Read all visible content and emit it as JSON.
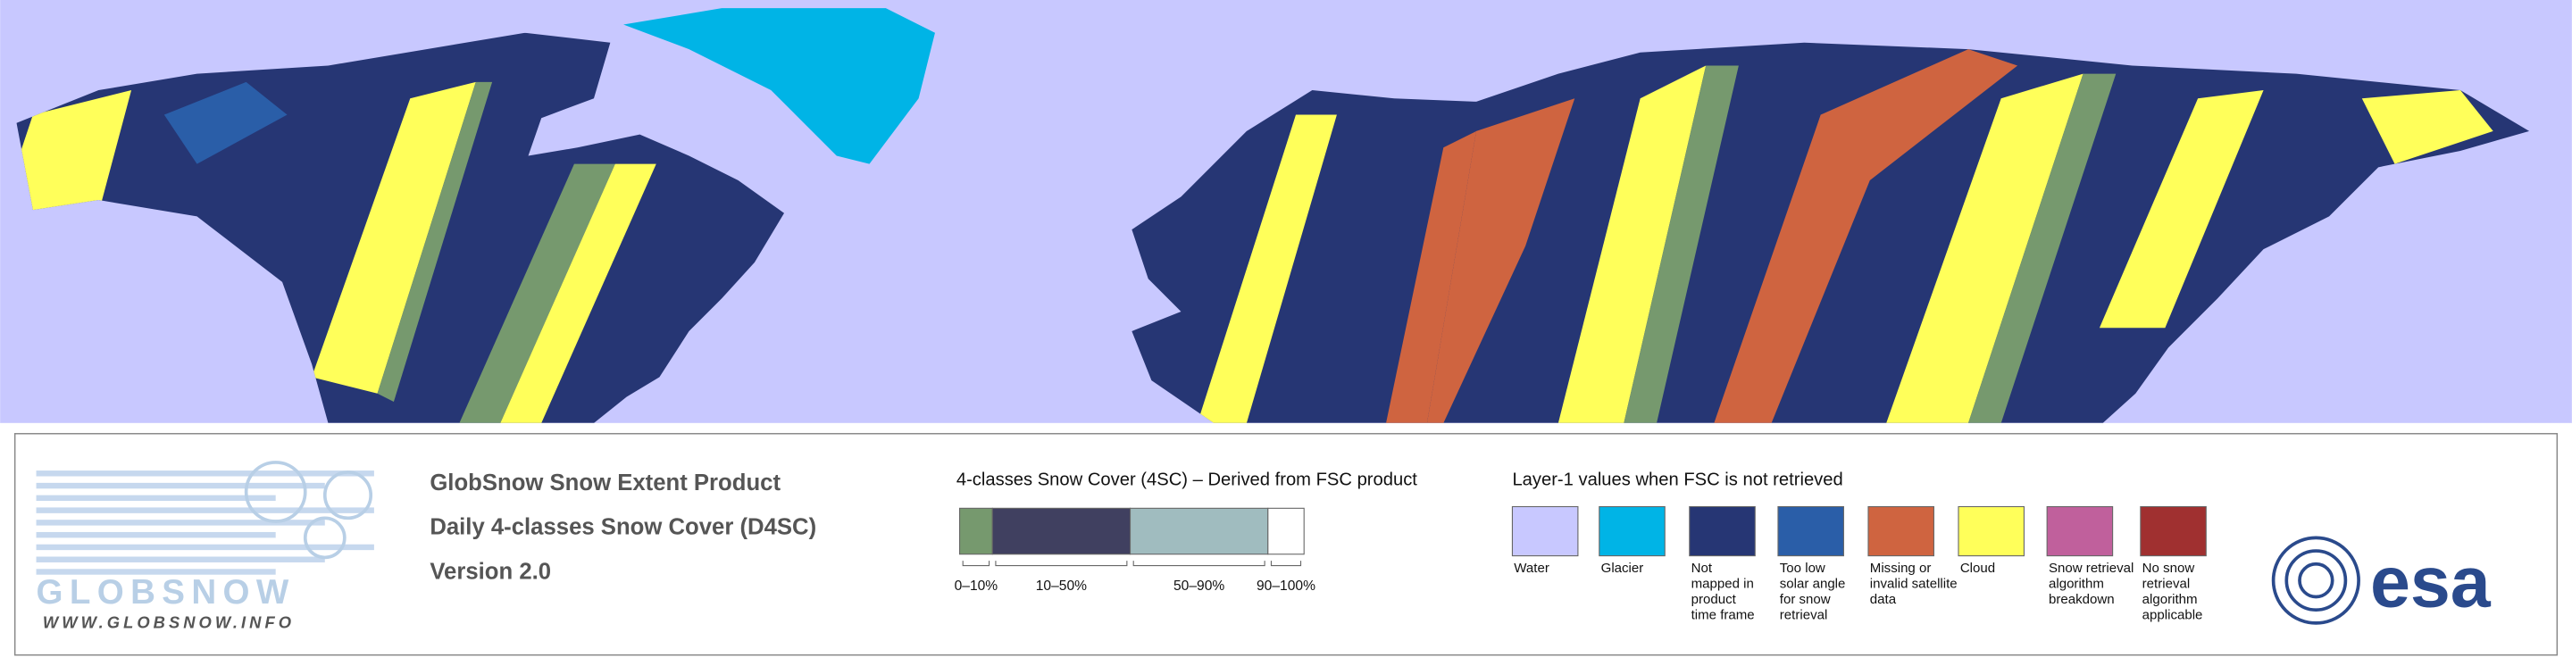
{
  "logo": {
    "name": "GLOBSNOW",
    "url": "WWW.GLOBSNOW.INFO"
  },
  "product": {
    "lines": [
      "GlobSnow Snow Extent Product",
      "Daily 4-classes Snow Cover (D4SC)",
      "Version 2.0"
    ]
  },
  "snow_cover_legend": {
    "title": "4-classes Snow Cover (4SC) – Derived from FSC product",
    "classes": [
      {
        "label": "0–10%",
        "color": "#76996e"
      },
      {
        "label": "10–50%",
        "color": "#404060"
      },
      {
        "label": "50–90%",
        "color": "#a0bcbf"
      },
      {
        "label": "90–100%",
        "color": "#ffffff"
      }
    ]
  },
  "layer1_legend": {
    "title": "Layer-1 values when FSC is not retrieved",
    "classes": [
      {
        "lines": [
          "Water"
        ],
        "color": "#c8c8ff"
      },
      {
        "lines": [
          "Glacier"
        ],
        "color": "#00b4e6"
      },
      {
        "lines": [
          "Not",
          "mapped in",
          "product",
          "time frame"
        ],
        "color": "#263674"
      },
      {
        "lines": [
          "Too low",
          "solar angle",
          "for snow",
          "retrieval"
        ],
        "color": "#2a5ea8"
      },
      {
        "lines": [
          "Missing or",
          "invalid satellite",
          "data"
        ],
        "color": "#cf6440"
      },
      {
        "lines": [
          "Cloud"
        ],
        "color": "#ffff5a"
      },
      {
        "lines": [
          "Snow retrieval",
          "algorithm",
          "breakdown"
        ],
        "color": "#c0609c"
      },
      {
        "lines": [
          "No snow",
          "retrieval",
          "algorithm",
          "applicable"
        ],
        "color": "#a03030"
      }
    ]
  },
  "esa_logo": "esa"
}
